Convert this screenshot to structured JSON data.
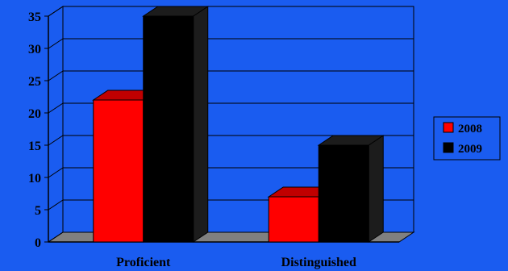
{
  "chart_data": {
    "type": "bar",
    "categories": [
      "Proficient",
      "Distinguished"
    ],
    "series": [
      {
        "name": "2008",
        "values": [
          22,
          7
        ]
      },
      {
        "name": "2009",
        "values": [
          35,
          15
        ]
      }
    ],
    "ylim": [
      0,
      35
    ],
    "yticks": [
      "0",
      "5",
      "10",
      "15",
      "20",
      "25",
      "30",
      "35"
    ],
    "grid": true,
    "legend_position": "right",
    "style": "3d",
    "colors": {
      "background": "#1a5cf0",
      "2008": "#ff0000",
      "2008_dark": "#c00000",
      "2009": "#000000",
      "2009_dark": "#1c1c1c",
      "floor": "#808080",
      "axes": "#000000"
    }
  }
}
